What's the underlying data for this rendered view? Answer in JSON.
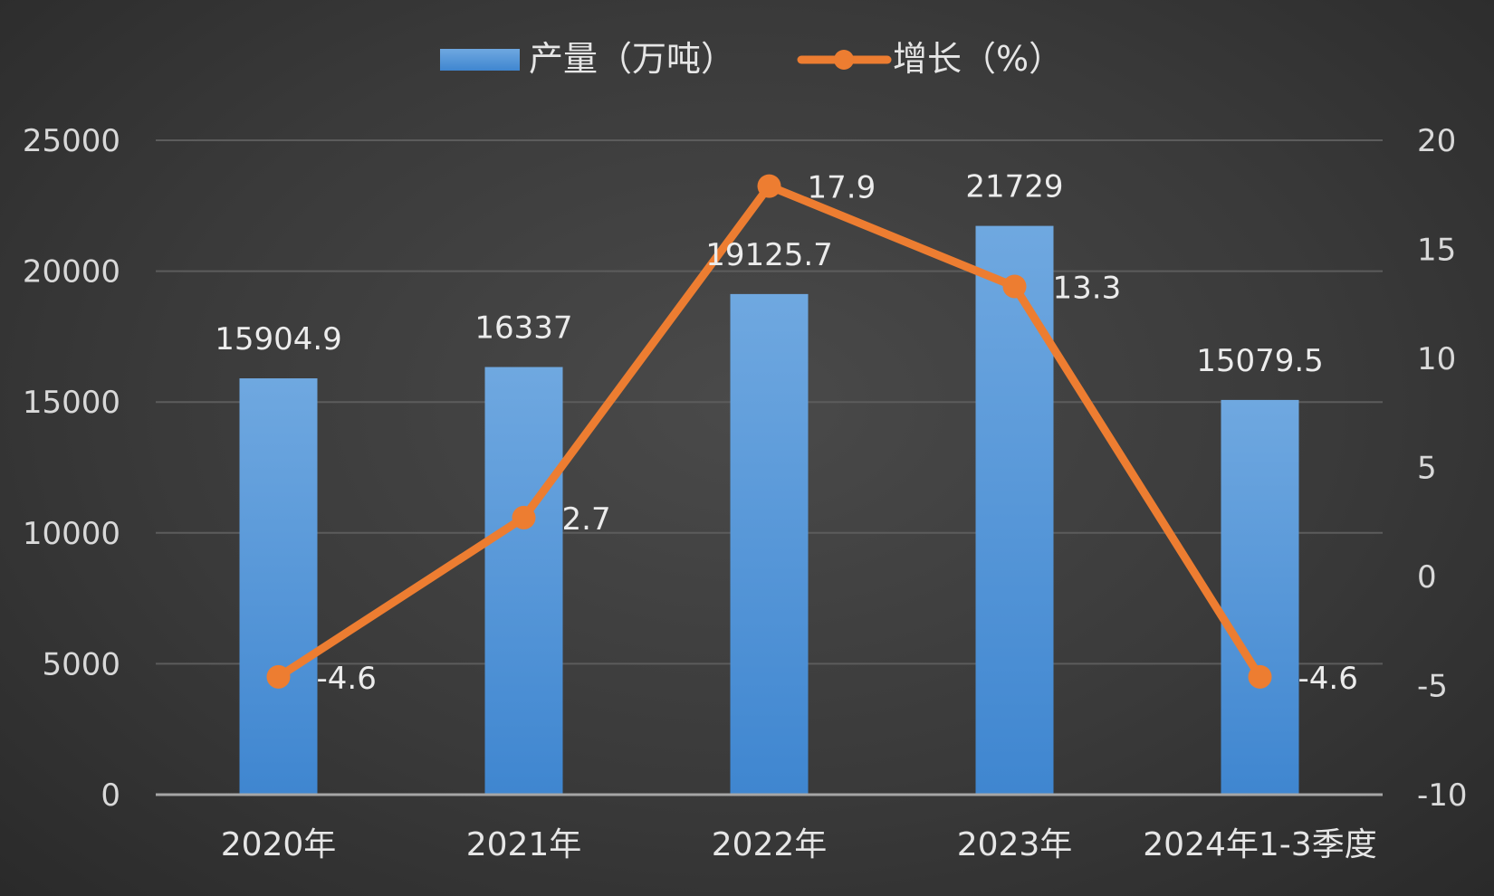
{
  "chart_data": {
    "type": "bar",
    "categories": [
      "2020年",
      "2021年",
      "2022年",
      "2023年",
      "2024年1-3季度"
    ],
    "series": [
      {
        "name": "产量（万吨）",
        "type": "bar",
        "axis": "left",
        "values": [
          15904.9,
          16337,
          19125.7,
          21729,
          15079.5
        ],
        "labels": [
          "15904.9",
          "16337",
          "19125.7",
          "21729",
          "15079.5"
        ],
        "color": "#5b9bd5"
      },
      {
        "name": "增长（%）",
        "type": "line",
        "axis": "right",
        "values": [
          -4.6,
          2.7,
          17.9,
          13.3,
          -4.6
        ],
        "labels": [
          "-4.6",
          "2.7",
          "17.9",
          "13.3",
          "-4.6"
        ],
        "color": "#ed7d31"
      }
    ],
    "ylim_left": [
      0,
      25000
    ],
    "yticks_left": [
      "0",
      "5000",
      "10000",
      "15000",
      "20000",
      "25000"
    ],
    "ylim_right": [
      -10,
      20
    ],
    "yticks_right": [
      "-10",
      "-5",
      "0",
      "5",
      "10",
      "15",
      "20"
    ],
    "grid": true,
    "legend_position": "top"
  }
}
